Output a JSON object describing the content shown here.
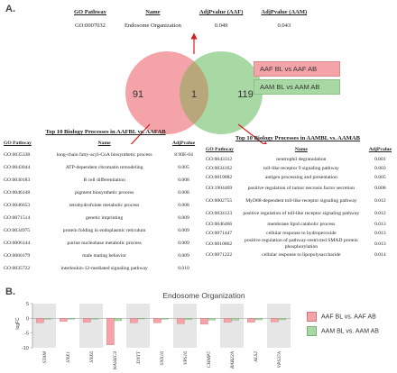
{
  "panel_a_label": "A.",
  "panel_b_label": "B.",
  "top_table": {
    "headers": [
      "GO Pathway",
      "Name",
      "AdjPvalue (AAF)",
      "AdjPvalue (AAM)"
    ],
    "row": [
      "GO:0007032",
      "Endosome Organization",
      "0.049",
      "0.043"
    ]
  },
  "venn": {
    "left_count": "91",
    "overlap_count": "1",
    "right_count": "119",
    "left_label": "AAF BL vs AAF AB",
    "right_label": "AAM BL vs AAM AB",
    "left_color": "#f4a3a8",
    "right_color": "#a8d8a3",
    "overlap_color": "#b8a77a",
    "arrow_color": "#d22020"
  },
  "left_table": {
    "title": "Top 10 Biology Processes in AAFBL vs. AAFAB",
    "headers": [
      "GO Pathway",
      "Name",
      "AdjPvalue"
    ],
    "rows": [
      [
        "GO:0035338",
        "long-chain fatty-acyl-CoA biosynthetic process",
        "8.90E-04"
      ],
      [
        "GO:0043044",
        "ATP-dependent chromatin remodeling",
        "0.005"
      ],
      [
        "GO:0030183",
        "B cell differentiation",
        "0.008"
      ],
      [
        "GO:0046148",
        "pigment biosynthetic process",
        "0.008"
      ],
      [
        "GO:0046653",
        "tetrahydrofolate metabolic process",
        "0.008"
      ],
      [
        "GO:0071514",
        "genetic imprinting",
        "0.009"
      ],
      [
        "GO:0034975",
        "protein folding in endoplasmic reticulum",
        "0.009"
      ],
      [
        "GO:0006144",
        "purine nucleobase metabolic process",
        "0.009"
      ],
      [
        "GO:0060179",
        "male mating behavior",
        "0.009"
      ],
      [
        "GO:0035722",
        "interleukin-12-mediated signaling pathway",
        "0.010"
      ]
    ]
  },
  "right_table": {
    "title": "Top 10 Biology Processes in AAMBL vs. AAMAB",
    "headers": [
      "GO Pathway",
      "Name",
      "AdjPvalue"
    ],
    "rows": [
      [
        "GO:0043312",
        "neutrophil degranulation",
        "0.001"
      ],
      [
        "GO:0034162",
        "toll-like receptor 9 signaling pathway",
        "0.003"
      ],
      [
        "GO:0019882",
        "antigen processing and presentation",
        "0.005"
      ],
      [
        "GO:1904469",
        "positive regulation of tumor necrosis factor secretion",
        "0.008"
      ],
      [
        "GO:0002755",
        "MyD88-dependent toll-like receptor signaling pathway",
        "0.012"
      ],
      [
        "GO:0034123",
        "positive regulation of toll-like receptor signaling pathway",
        "0.012"
      ],
      [
        "GO:0046466",
        "membrane lipid catabolic process",
        "0.013"
      ],
      [
        "GO:0071447",
        "cellular response to hydroperoxide",
        "0.013"
      ],
      [
        "GO:0010862",
        "positive regulation of pathway-restricted SMAD protein phosphorylation",
        "0.013"
      ],
      [
        "GO:0071222",
        "cellular response to lipopolysaccharide",
        "0.014"
      ]
    ]
  },
  "chart_data": {
    "type": "bar",
    "title": "Endosome Organization",
    "ylabel": "logFC",
    "ylim": [
      -10,
      5
    ],
    "yticks": [
      "5",
      "0",
      "-5",
      "-10"
    ],
    "categories": [
      "STAM",
      "SNX1",
      "SNX6",
      "WASHC4",
      "DNTT",
      "SNX16",
      "VPS16",
      "CHMP5",
      "RAB22A",
      "ALS2",
      "VPS37A"
    ],
    "series": [
      {
        "name": "AAF BL vs. AAF AB",
        "color": "#f4a3a8",
        "values": [
          -1.5,
          -1.0,
          -1.3,
          -9.0,
          -1.5,
          -1.5,
          -1.8,
          -2.0,
          -1.3,
          -1.3,
          -1.2
        ]
      },
      {
        "name": "AAM BL vs. AAM AB",
        "color": "#a8d8a3",
        "values": [
          -0.3,
          -0.3,
          -0.3,
          -0.8,
          -0.2,
          -0.3,
          -0.4,
          -0.6,
          -0.6,
          -0.5,
          -0.5
        ]
      }
    ],
    "legend_position": "right"
  }
}
